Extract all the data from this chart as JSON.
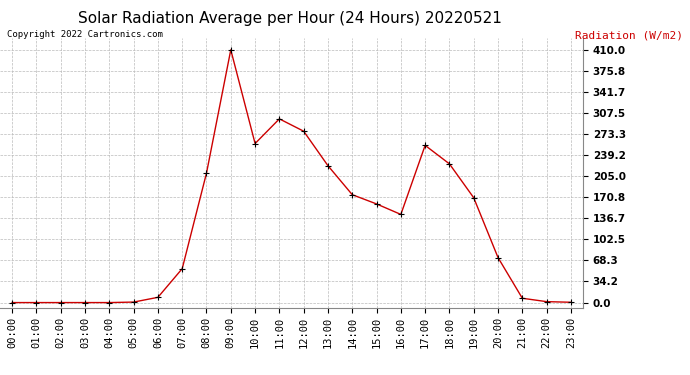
{
  "title": "Solar Radiation Average per Hour (24 Hours) 20220521",
  "copyright_text": "Copyright 2022 Cartronics.com",
  "ylabel": "Radiation (W/m2)",
  "hours": [
    "00:00",
    "01:00",
    "02:00",
    "03:00",
    "04:00",
    "05:00",
    "06:00",
    "07:00",
    "08:00",
    "09:00",
    "10:00",
    "11:00",
    "12:00",
    "13:00",
    "14:00",
    "15:00",
    "16:00",
    "17:00",
    "18:00",
    "19:00",
    "20:00",
    "21:00",
    "22:00",
    "23:00"
  ],
  "values": [
    0.0,
    0.0,
    0.0,
    0.0,
    0.0,
    0.8,
    8.5,
    55.0,
    210.0,
    410.0,
    258.0,
    298.0,
    278.0,
    222.0,
    175.0,
    160.0,
    143.0,
    255.0,
    225.0,
    170.0,
    73.0,
    7.0,
    1.5,
    0.5
  ],
  "line_color": "#cc0000",
  "marker_color": "#000000",
  "grid_color": "#bbbbbb",
  "background_color": "#ffffff",
  "title_fontsize": 11,
  "tick_fontsize": 7.5,
  "yticks": [
    0.0,
    34.2,
    68.3,
    102.5,
    136.7,
    170.8,
    205.0,
    239.2,
    273.3,
    307.5,
    341.7,
    375.8,
    410.0
  ],
  "ylim": [
    -8,
    430
  ],
  "copyright_color": "#000000",
  "ylabel_color": "#cc0000"
}
